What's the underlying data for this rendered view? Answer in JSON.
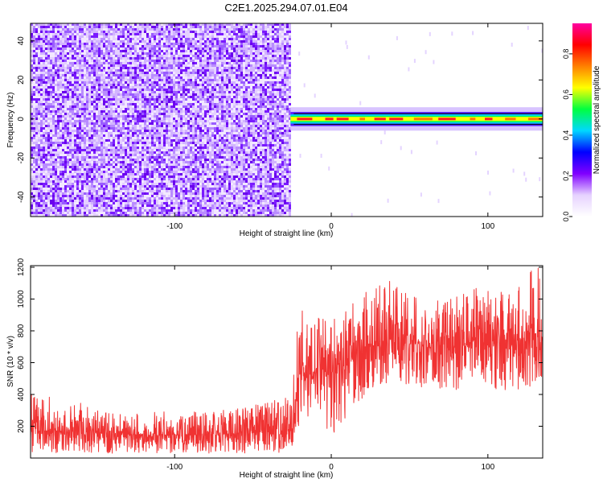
{
  "title": "C2E1.2025.294.07.01.E04",
  "chart_data": [
    {
      "type": "heatmap",
      "xlabel": "Height of straight line (km)",
      "ylabel": "Frequency (Hz)",
      "xlim": [
        -192,
        135
      ],
      "ylim": [
        -50,
        49
      ],
      "xticks": [
        -100,
        0,
        100
      ],
      "yticks": [
        -40,
        -20,
        0,
        20,
        40
      ],
      "noise_region_x": [
        -192,
        -26
      ],
      "signal_start_x": -26,
      "signal_band_frequency_hz": 0,
      "signal_band_halfwidth_hz": 1.5,
      "colorbar": {
        "label": "Normalized spectral amplitude",
        "range": [
          0,
          0.95
        ],
        "ticks": [
          0.0,
          0.2,
          0.4,
          0.6,
          0.8
        ],
        "tick_labels": [
          "0.0",
          "0.2",
          "0.4",
          "0.6",
          "0.8"
        ],
        "colors": [
          "#ffffff",
          "#e6d2ff",
          "#8000ff",
          "#0000ff",
          "#00d8ff",
          "#00ff40",
          "#ffff00",
          "#ff8000",
          "#ff0000",
          "#ff00a0"
        ]
      }
    },
    {
      "type": "line",
      "xlabel": "Height of straight line (km)",
      "ylabel": "SNR (10 * v/v)",
      "xlim": [
        -192,
        135
      ],
      "ylim": [
        0,
        1210
      ],
      "xticks": [
        -100,
        0,
        100
      ],
      "yticks": [
        200,
        400,
        600,
        800,
        1000,
        1200
      ],
      "color": "#f03232",
      "envelope": {
        "x": [
          -192,
          -170,
          -150,
          -130,
          -110,
          -90,
          -70,
          -50,
          -30,
          -25,
          -21,
          -18,
          -15,
          -10,
          -5,
          0,
          5,
          10,
          15,
          20,
          30,
          40,
          50,
          60,
          70,
          80,
          90,
          100,
          110,
          120,
          130,
          135
        ],
        "median": [
          170,
          170,
          160,
          150,
          145,
          145,
          150,
          160,
          170,
          175,
          520,
          520,
          470,
          560,
          560,
          460,
          600,
          620,
          650,
          700,
          730,
          750,
          720,
          700,
          680,
          700,
          720,
          720,
          740,
          740,
          760,
          760
        ],
        "low": [
          30,
          30,
          30,
          30,
          30,
          30,
          30,
          30,
          30,
          30,
          200,
          220,
          180,
          250,
          220,
          80,
          200,
          250,
          300,
          380,
          450,
          480,
          450,
          420,
          420,
          430,
          450,
          440,
          420,
          430,
          460,
          460
        ],
        "high": [
          410,
          390,
          300,
          280,
          300,
          290,
          300,
          330,
          380,
          390,
          960,
          920,
          850,
          880,
          880,
          820,
          1020,
          940,
          1000,
          1060,
          1130,
          1110,
          1050,
          960,
          1000,
          1020,
          1090,
          1050,
          1100,
          1150,
          1200,
          1200
        ]
      }
    }
  ]
}
